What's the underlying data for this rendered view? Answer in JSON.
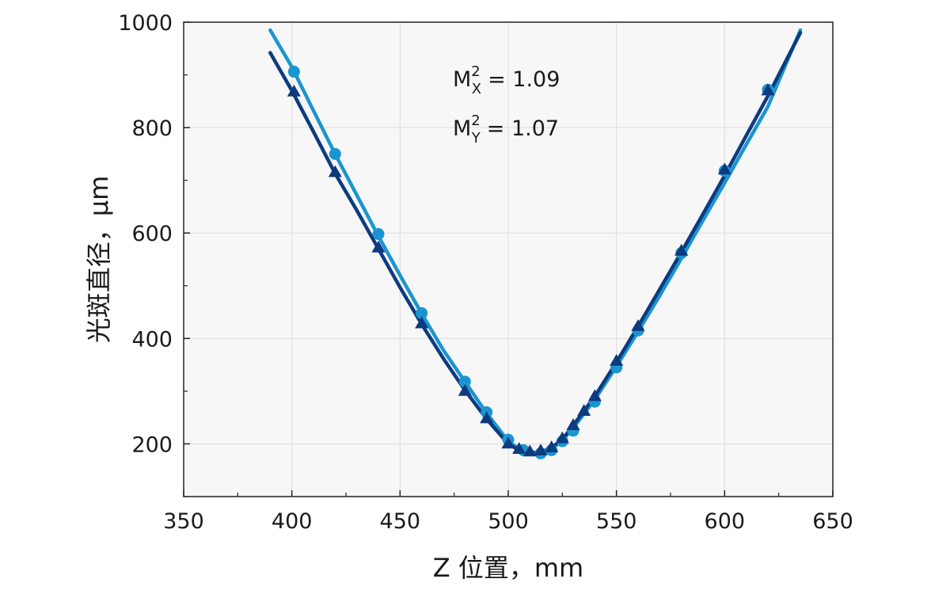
{
  "chart_data": {
    "type": "line",
    "xlabel": "Z 位置，mm",
    "ylabel": "光斑直径，μm",
    "xlim": [
      350,
      650
    ],
    "ylim": [
      100,
      1000
    ],
    "xticks": [
      350,
      400,
      450,
      500,
      550,
      600,
      650
    ],
    "yticks": [
      200,
      400,
      600,
      800,
      1000
    ],
    "grid": true,
    "annotations": [
      {
        "base": "M",
        "sup": "2",
        "sub": "X",
        "value": "= 1.09"
      },
      {
        "base": "M",
        "sup": "2",
        "sub": "Y",
        "value": "= 1.07"
      }
    ],
    "series": [
      {
        "kind": "fit",
        "color": "#1b95cf",
        "x": [
          390,
          400,
          410,
          420,
          430,
          440,
          450,
          460,
          470,
          480,
          490,
          500,
          505,
          510,
          515,
          520,
          525,
          530,
          540,
          550,
          560,
          570,
          580,
          590,
          600,
          610,
          620,
          635
        ],
        "y": [
          985,
          915,
          832,
          750,
          672,
          594,
          520,
          447,
          378,
          318,
          258,
          205,
          190,
          183,
          182,
          190,
          207,
          230,
          284,
          347,
          413,
          481,
          552,
          624,
          695,
          768,
          840,
          985
        ]
      },
      {
        "kind": "measured",
        "marker": "circle",
        "color": "#1b95cf",
        "x": [
          401,
          420,
          440,
          460,
          480,
          490,
          500,
          507,
          515,
          520,
          525,
          530,
          540,
          550,
          560,
          580,
          600,
          620
        ],
        "y": [
          906,
          750,
          598,
          448,
          318,
          260,
          208,
          188,
          182,
          188,
          205,
          225,
          280,
          345,
          415,
          562,
          718,
          872
        ]
      },
      {
        "kind": "fit",
        "color": "#0d3b80",
        "x": [
          390,
          400,
          410,
          420,
          430,
          440,
          450,
          460,
          470,
          480,
          490,
          500,
          505,
          510,
          515,
          520,
          525,
          530,
          540,
          550,
          560,
          570,
          580,
          590,
          600,
          610,
          620,
          635
        ],
        "y": [
          942,
          870,
          792,
          713,
          643,
          570,
          497,
          427,
          362,
          302,
          247,
          200,
          188,
          183,
          184,
          193,
          208,
          235,
          290,
          355,
          423,
          493,
          564,
          636,
          709,
          785,
          860,
          980
        ]
      },
      {
        "kind": "measured",
        "marker": "triangle",
        "color": "#0d3b80",
        "x": [
          401,
          420,
          440,
          460,
          480,
          490,
          500,
          505,
          510,
          515,
          520,
          525,
          530,
          535,
          540,
          550,
          560,
          580,
          600,
          620
        ],
        "y": [
          868,
          715,
          572,
          428,
          300,
          248,
          200,
          190,
          185,
          187,
          193,
          210,
          235,
          262,
          290,
          357,
          423,
          566,
          720,
          870
        ]
      }
    ]
  }
}
